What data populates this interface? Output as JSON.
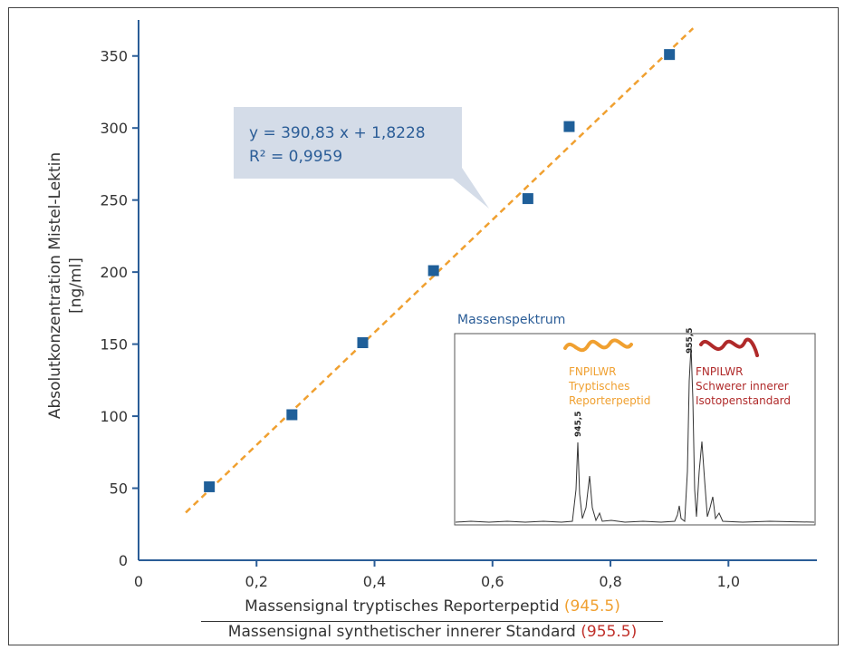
{
  "chart_data": {
    "type": "scatter",
    "xlim": [
      0,
      1.15
    ],
    "ylim": [
      0,
      375
    ],
    "xticks": [
      "0",
      "0,2",
      "0,4",
      "0,6",
      "0,8",
      "1,0"
    ],
    "yticks": [
      "0",
      "50",
      "100",
      "150",
      "200",
      "250",
      "300",
      "350"
    ],
    "x": [
      0.12,
      0.26,
      0.38,
      0.5,
      0.66,
      0.73,
      0.9
    ],
    "y": [
      51,
      101,
      151,
      201,
      251,
      301,
      351
    ],
    "trendline": {
      "slope": 390.83,
      "intercept": 1.8228,
      "x_range": [
        0.08,
        0.94
      ],
      "color": "#f0a030"
    },
    "ylabel_line1": "Absolutkonzentration Mistel-Lektin",
    "ylabel_line2": "[ng/ml]",
    "xlabel_numerator": "Massensignal tryptisches Reporterpeptid",
    "xlabel_numerator_value": "(945.5)",
    "xlabel_denominator": "Massensignal synthetischer innerer Standard",
    "xlabel_denominator_value": "(955.5)",
    "annotation": {
      "line1": "y = 390,83 x + 1,8228",
      "line2": "R² = 0,9959"
    },
    "marker_color": "#1f5f99",
    "inset": {
      "title": "Massenspektrum",
      "peak1_label": "945,5",
      "peak2_label": "955,5",
      "left_lines": [
        "FNPILWR",
        "Tryptisches",
        "Reporterpeptid"
      ],
      "right_lines": [
        "FNPILWR",
        "Schwerer innerer",
        "Isotopenstandard"
      ]
    }
  }
}
